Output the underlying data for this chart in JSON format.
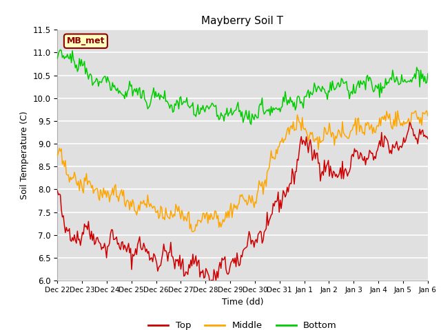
{
  "title": "Mayberry Soil T",
  "xlabel": "Time (dd)",
  "ylabel": "Soil Temperature (C)",
  "ylim": [
    6.0,
    11.5
  ],
  "annotation": "MB_met",
  "line_colors": {
    "Top": "#cc0000",
    "Middle": "#ffa500",
    "Bottom": "#00cc00"
  },
  "legend_labels": [
    "Top",
    "Middle",
    "Bottom"
  ],
  "bg_color": "#e0e0e0",
  "grid_color": "#ffffff",
  "tick_labels": [
    "Dec 22",
    "Dec 23",
    "Dec 24",
    "Dec 25",
    "Dec 26",
    "Dec 27",
    "Dec 28",
    "Dec 29",
    "Dec 30",
    "Dec 31",
    "Jan 1",
    "Jan 2",
    "Jan 3",
    "Jan 4",
    "Jan 5",
    "Jan 6"
  ],
  "n_points": 370
}
